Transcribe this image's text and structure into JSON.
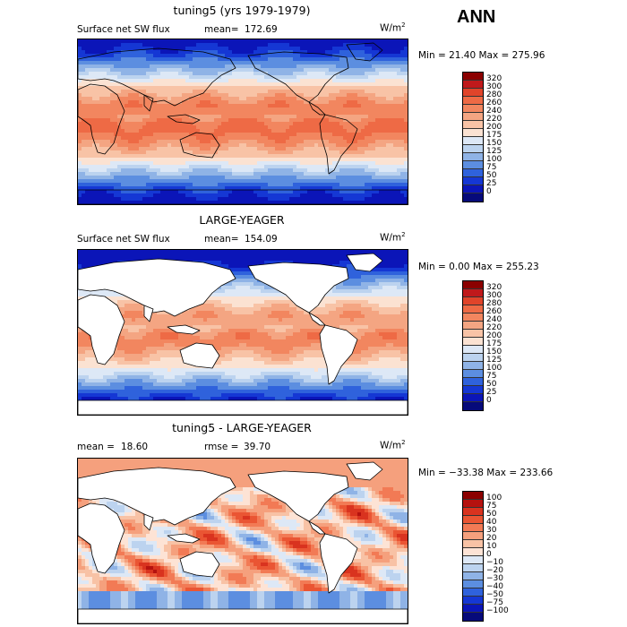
{
  "season": "ANN",
  "units_base": "W/m",
  "units_sup": "2",
  "panels": [
    {
      "id": "test",
      "title": "tuning5 (yrs 1979-1979)",
      "variable": "Surface net SW flux",
      "stat_label": "mean=",
      "stat_value": "172.69",
      "minmax_text": "Min =  21.40 Max = 275.96",
      "levels": [
        "320",
        "300",
        "280",
        "260",
        "240",
        "220",
        "200",
        "175",
        "150",
        "125",
        "100",
        "75",
        "50",
        "25",
        "0"
      ],
      "colors": [
        "#8b0000",
        "#c0191b",
        "#e0442a",
        "#ee6a45",
        "#f2865f",
        "#f4a582",
        "#f8c3a6",
        "#fbe2d2",
        "#dde8f6",
        "#bcd3ef",
        "#8fb3e6",
        "#5c8ee0",
        "#2f62dc",
        "#1537d4",
        "#0b15b8",
        "#060a7a"
      ],
      "mask_land": false
    },
    {
      "id": "obs",
      "title": "LARGE-YEAGER",
      "variable": "Surface net SW flux",
      "stat_label": "mean=",
      "stat_value": "154.09",
      "minmax_text": "Min =   0.00 Max = 255.23",
      "levels": [
        "320",
        "300",
        "280",
        "260",
        "240",
        "220",
        "200",
        "175",
        "150",
        "125",
        "100",
        "75",
        "50",
        "25",
        "0"
      ],
      "colors": [
        "#8b0000",
        "#c0191b",
        "#e0442a",
        "#ee6a45",
        "#f2865f",
        "#f4a582",
        "#f8c3a6",
        "#fbe2d2",
        "#dde8f6",
        "#bcd3ef",
        "#8fb3e6",
        "#5c8ee0",
        "#2f62dc",
        "#1537d4",
        "#0b15b8",
        "#060a7a"
      ],
      "mask_land": true
    },
    {
      "id": "diff",
      "title": "tuning5 - LARGE-YEAGER",
      "stat_label": "mean =",
      "stat_value": "18.60",
      "rmse_label": "rmse =",
      "rmse_value": "39.70",
      "minmax_text": "Min = −33.38 Max = 233.66",
      "levels": [
        "100",
        "75",
        "50",
        "40",
        "30",
        "20",
        "10",
        "0",
        "−10",
        "−20",
        "−30",
        "−40",
        "−50",
        "−75",
        "−100"
      ],
      "colors": [
        "#8b0000",
        "#b5120f",
        "#d9331f",
        "#ea5533",
        "#f27a55",
        "#f5a07d",
        "#f8c2a5",
        "#fde3d5",
        "#dde8f6",
        "#bcd3ef",
        "#8fb3e6",
        "#5c8ee0",
        "#2f62dc",
        "#1537d4",
        "#0b15b8",
        "#060a7a"
      ],
      "mask_land": true
    }
  ]
}
